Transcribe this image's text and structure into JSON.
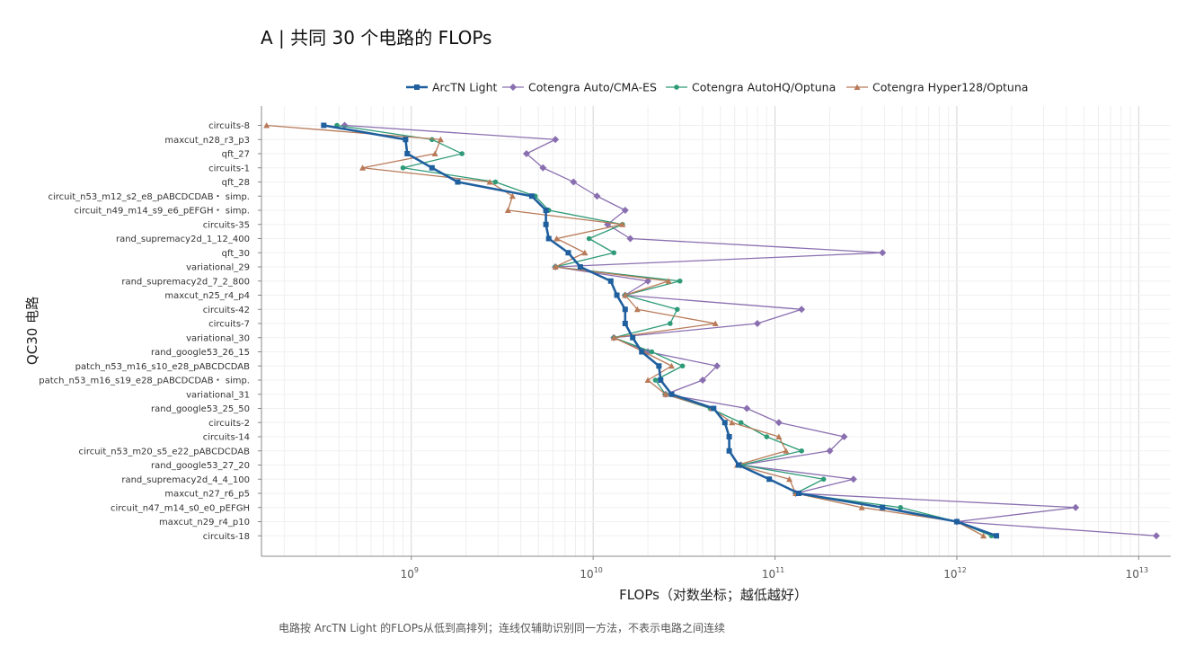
{
  "chart_data": {
    "type": "line",
    "title": "A | 共同 30 个电路的 FLOPs",
    "xlabel": "FLOPs（对数坐标；越低越好）",
    "ylabel": "QC30 电路",
    "footnote": "电路按 ArcTN Light 的FLOPs从低到高排列；连线仅辅助识别同一方法，不表示电路之间连续",
    "x_scale": "log",
    "xlim": [
      150000000.0,
      15000000000000.0
    ],
    "x_ticks": [
      {
        "base": "10",
        "exp": "9",
        "value": 1000000000.0
      },
      {
        "base": "10",
        "exp": "10",
        "value": 10000000000.0
      },
      {
        "base": "10",
        "exp": "11",
        "value": 100000000000.0
      },
      {
        "base": "10",
        "exp": "12",
        "value": 1000000000000.0
      },
      {
        "base": "10",
        "exp": "13",
        "value": 10000000000000.0
      }
    ],
    "grid": true,
    "legend_position": "top",
    "categories": [
      "circuits-8",
      "maxcut_n28_r3_p3",
      "qft_27",
      "circuits-1",
      "qft_28",
      "circuit_n53_m12_s2_e8_pABCDCDAB・ simp.",
      "circuit_n49_m14_s9_e6_pEFGH・ simp.",
      "circuits-35",
      "rand_supremacy2d_1_12_400",
      "qft_30",
      "variational_29",
      "rand_supremacy2d_7_2_800",
      "maxcut_n25_r4_p4",
      "circuits-42",
      "circuits-7",
      "variational_30",
      "rand_google53_26_15",
      "patch_n53_m16_s10_e28_pABCDCDAB",
      "patch_n53_m16_s19_e28_pABCDCDAB・ simp.",
      "variational_31",
      "rand_google53_25_50",
      "circuits-2",
      "circuits-14",
      "circuit_n53_m20_s5_e22_pABCDCDAB",
      "rand_google53_27_20",
      "rand_supremacy2d_4_4_100",
      "maxcut_n27_r6_p5",
      "circuit_n47_m14_s0_e0_pEFGH",
      "maxcut_n29_r4_p10",
      "circuits-18"
    ],
    "series": [
      {
        "name": "ArcTN Light",
        "color": "#1f5f9e",
        "marker": "square",
        "values": [
          330000000.0,
          930000000.0,
          950000000.0,
          1300000000.0,
          1800000000.0,
          4600000000.0,
          5500000000.0,
          5500000000.0,
          5700000000.0,
          7300000000.0,
          8500000000.0,
          12500000000.0,
          13500000000.0,
          15000000000.0,
          15000000000.0,
          16500000000.0,
          18500000000.0,
          23000000000.0,
          23500000000.0,
          27000000000.0,
          46000000000.0,
          53000000000.0,
          56000000000.0,
          56000000000.0,
          63000000000.0,
          93000000000.0,
          135000000000.0,
          390000000000.0,
          1000000000000.0,
          1650000000000.0
        ]
      },
      {
        "name": "Cotengra Auto/CMA-ES",
        "color": "#8a6fb0",
        "marker": "diamond",
        "values": [
          430000000.0,
          6200000000.0,
          4300000000.0,
          5300000000.0,
          7800000000.0,
          10500000000.0,
          15000000000.0,
          12000000000.0,
          16000000000.0,
          390000000000.0,
          6200000000.0,
          20000000000.0,
          15000000000.0,
          140000000000.0,
          80000000000.0,
          13000000000.0,
          20000000000.0,
          48000000000.0,
          40000000000.0,
          25000000000.0,
          70000000000.0,
          105000000000.0,
          240000000000.0,
          200000000000.0,
          65000000000.0,
          270000000000.0,
          130000000000.0,
          4500000000000.0,
          1000000000000.0,
          12500000000000.0
        ]
      },
      {
        "name": "Cotengra AutoHQ/Optuna",
        "color": "#2e9a78",
        "marker": "circle",
        "values": [
          390000000.0,
          1300000000.0,
          1900000000.0,
          900000000.0,
          2900000000.0,
          4800000000.0,
          5700000000.0,
          14500000000.0,
          9500000000.0,
          13000000000.0,
          6200000000.0,
          30000000000.0,
          15000000000.0,
          29000000000.0,
          26500000000.0,
          13000000000.0,
          21000000000.0,
          31000000000.0,
          22000000000.0,
          25000000000.0,
          44000000000.0,
          65000000000.0,
          90000000000.0,
          140000000000.0,
          65000000000.0,
          185000000000.0,
          130000000000.0,
          490000000000.0,
          1000000000000.0,
          1550000000000.0
        ]
      },
      {
        "name": "Cotengra Hyper128/Optuna",
        "color": "#b87a58",
        "marker": "triangle",
        "values": [
          160000000.0,
          1450000000.0,
          1350000000.0,
          540000000.0,
          2700000000.0,
          3600000000.0,
          3400000000.0,
          14500000000.0,
          6300000000.0,
          9000000000.0,
          6200000000.0,
          26000000000.0,
          15000000000.0,
          17500000000.0,
          47000000000.0,
          13000000000.0,
          19000000000.0,
          27000000000.0,
          20000000000.0,
          25000000000.0,
          45000000000.0,
          58000000000.0,
          105000000000.0,
          115000000000.0,
          62000000000.0,
          120000000000.0,
          130000000000.0,
          300000000000.0,
          1000000000000.0,
          1400000000000.0
        ]
      }
    ]
  }
}
